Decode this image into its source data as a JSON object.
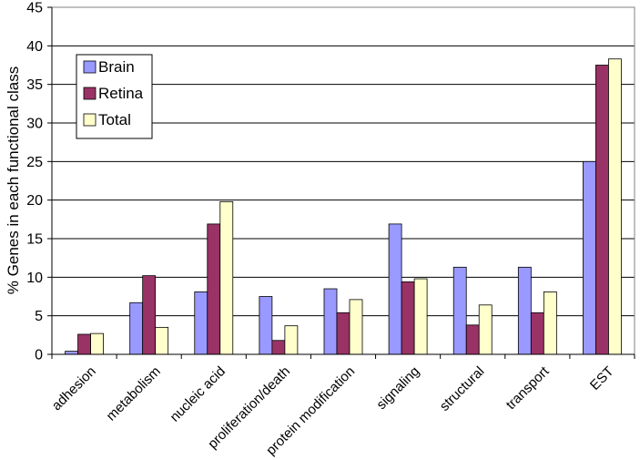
{
  "chart_data": {
    "type": "bar",
    "title": "",
    "xlabel": "",
    "ylabel": "% Genes in each functional class",
    "ylim": [
      0,
      45
    ],
    "yticks": [
      0,
      5,
      10,
      15,
      20,
      25,
      30,
      35,
      40,
      45
    ],
    "ytick_labels": [
      "0",
      "5",
      "10",
      "15",
      "20",
      "25",
      "30",
      "35",
      "40",
      "45"
    ],
    "grid": "horizontal",
    "legend": "top-left",
    "categories": [
      "adhesion",
      "metabolism",
      "nucleic acid",
      "proliferation/death",
      "protein modification",
      "signaling",
      "structural",
      "transport",
      "EST"
    ],
    "series": [
      {
        "name": "Brain",
        "color": "#9999ff",
        "values": [
          0.4,
          6.7,
          8.1,
          7.5,
          8.5,
          16.9,
          11.3,
          11.3,
          25.0
        ]
      },
      {
        "name": "Retina",
        "color": "#993366",
        "values": [
          2.6,
          10.2,
          16.9,
          1.8,
          5.4,
          9.4,
          3.8,
          5.4,
          37.5
        ]
      },
      {
        "name": "Total",
        "color": "#ffffcc",
        "values": [
          2.7,
          3.5,
          19.8,
          3.7,
          7.1,
          9.8,
          6.4,
          8.1,
          38.3
        ]
      }
    ]
  }
}
